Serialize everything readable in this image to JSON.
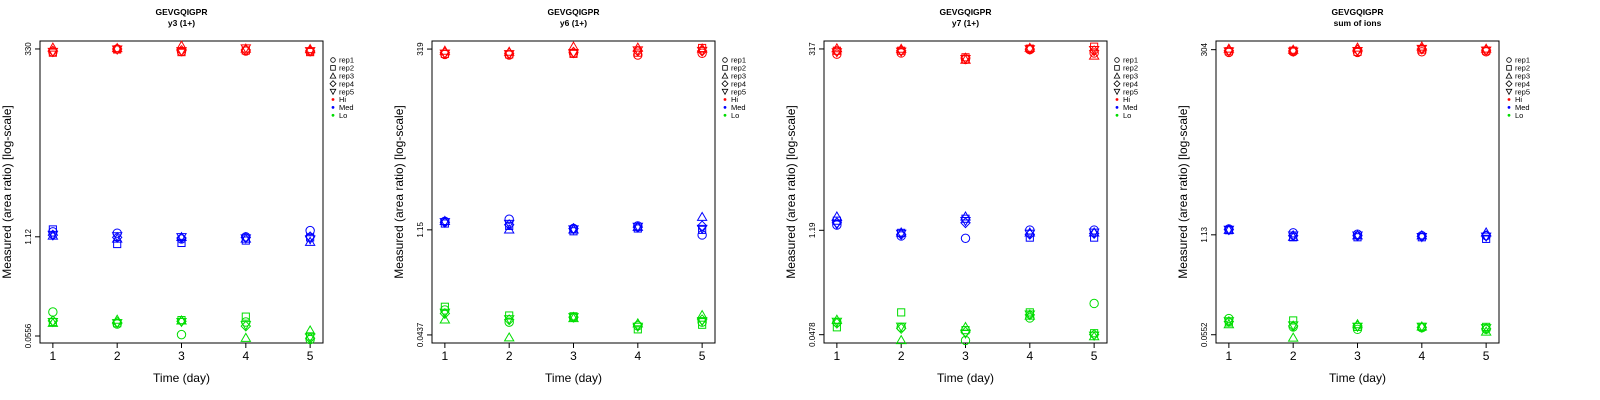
{
  "colors": {
    "Hi": "#ff0000",
    "Med": "#0000ff",
    "Lo": "#00dd00",
    "axis": "#000000"
  },
  "legend": {
    "shapes": [
      {
        "label": "rep1",
        "symbol": "circle"
      },
      {
        "label": "rep2",
        "symbol": "square"
      },
      {
        "label": "rep3",
        "symbol": "triangle"
      },
      {
        "label": "rep4",
        "symbol": "diamond"
      },
      {
        "label": "rep5",
        "symbol": "triangle-down"
      }
    ],
    "levels": [
      {
        "label": "Hi",
        "color": "#ff0000"
      },
      {
        "label": "Med",
        "color": "#0000ff"
      },
      {
        "label": "Lo",
        "color": "#00dd00"
      }
    ]
  },
  "chart_data": [
    {
      "type": "scatter",
      "title": "GEVGQIGPR",
      "subtitle": "y3 (1+)",
      "xlabel": "Time (day)",
      "ylabel": "Measured (area ratio) [log-scale]",
      "x": [
        1,
        2,
        3,
        4,
        5
      ],
      "yscale": "log",
      "yticks": [
        "0.0556",
        "1.12",
        "330"
      ],
      "ylim": [
        0.045,
        420
      ],
      "series": {
        "Hi": {
          "rep1": [
            300,
            330,
            305,
            310,
            305
          ],
          "rep2": [
            295,
            325,
            300,
            315,
            300
          ],
          "rep3": [
            340,
            335,
            360,
            330,
            325
          ],
          "rep4": [
            310,
            330,
            315,
            320,
            310
          ],
          "rep5": [
            305,
            328,
            312,
            340,
            312
          ]
        },
        "Med": {
          "rep1": [
            1.3,
            1.25,
            1.05,
            1.12,
            1.35
          ],
          "rep2": [
            1.4,
            0.9,
            0.93,
            1.0,
            1.1
          ],
          "rep3": [
            1.15,
            1.05,
            1.1,
            1.05,
            0.95
          ],
          "rep4": [
            1.18,
            1.1,
            1.08,
            1.1,
            1.12
          ],
          "rep5": [
            1.2,
            1.15,
            1.12,
            1.08,
            1.05
          ]
        },
        "Lo": {
          "rep1": [
            0.115,
            0.08,
            0.058,
            0.085,
            0.05
          ],
          "rep2": [
            0.085,
            0.082,
            0.09,
            0.1,
            0.055
          ],
          "rep3": [
            0.082,
            0.09,
            0.088,
            0.052,
            0.065
          ],
          "rep4": [
            0.088,
            0.084,
            0.087,
            0.075,
            0.052
          ],
          "rep5": [
            0.086,
            0.083,
            0.086,
            0.078,
            0.054
          ]
        }
      }
    },
    {
      "type": "scatter",
      "title": "GEVGQIGPR",
      "subtitle": "y6 (1+)",
      "xlabel": "Time (day)",
      "ylabel": "Measured (area ratio) [log-scale]",
      "x": [
        1,
        2,
        3,
        4,
        5
      ],
      "yscale": "log",
      "yticks": [
        "0.0437",
        "1.15",
        "319"
      ],
      "ylim": [
        0.034,
        410
      ],
      "series": {
        "Hi": {
          "rep1": [
            270,
            265,
            280,
            265,
            280
          ],
          "rep2": [
            275,
            270,
            275,
            285,
            330
          ],
          "rep3": [
            300,
            290,
            340,
            330,
            320
          ],
          "rep4": [
            285,
            280,
            290,
            300,
            300
          ],
          "rep5": [
            280,
            275,
            285,
            310,
            305
          ]
        },
        "Med": {
          "rep1": [
            1.5,
            1.6,
            1.2,
            1.3,
            0.98
          ],
          "rep2": [
            1.4,
            1.3,
            1.1,
            1.2,
            1.15
          ],
          "rep3": [
            1.5,
            1.15,
            1.15,
            1.25,
            1.7
          ],
          "rep4": [
            1.45,
            1.35,
            1.2,
            1.25,
            1.3
          ],
          "rep5": [
            1.48,
            1.4,
            1.18,
            1.28,
            1.2
          ]
        },
        "Lo": {
          "rep1": [
            0.095,
            0.065,
            0.075,
            0.058,
            0.065
          ],
          "rep2": [
            0.105,
            0.08,
            0.078,
            0.052,
            0.06
          ],
          "rep3": [
            0.07,
            0.04,
            0.073,
            0.062,
            0.08
          ],
          "rep4": [
            0.085,
            0.07,
            0.076,
            0.06,
            0.07
          ],
          "rep5": [
            0.088,
            0.072,
            0.077,
            0.057,
            0.068
          ]
        }
      }
    },
    {
      "type": "scatter",
      "title": "GEVGQIGPR",
      "subtitle": "y7 (1+)",
      "xlabel": "Time (day)",
      "ylabel": "Measured (area ratio) [log-scale]",
      "x": [
        1,
        2,
        3,
        4,
        5
      ],
      "yscale": "log",
      "yticks": [
        "0.0478",
        "1.19",
        "317"
      ],
      "ylim": [
        0.037,
        405
      ],
      "series": {
        "Hi": {
          "rep1": [
            270,
            280,
            230,
            310,
            280
          ],
          "rep2": [
            300,
            300,
            245,
            320,
            340
          ],
          "rep3": [
            320,
            315,
            225,
            325,
            255
          ],
          "rep4": [
            295,
            300,
            240,
            315,
            300
          ],
          "rep5": [
            290,
            295,
            235,
            318,
            310
          ]
        },
        "Med": {
          "rep1": [
            1.4,
            1.0,
            0.93,
            1.2,
            1.2
          ],
          "rep2": [
            1.6,
            1.1,
            1.7,
            0.95,
            0.95
          ],
          "rep3": [
            1.8,
            1.1,
            1.8,
            1.1,
            1.1
          ],
          "rep4": [
            1.5,
            1.05,
            1.5,
            1.05,
            1.08
          ],
          "rep5": [
            1.45,
            1.08,
            1.6,
            1.08,
            1.12
          ]
        },
        "Lo": {
          "rep1": [
            0.07,
            0.06,
            0.04,
            0.08,
            0.125
          ],
          "rep2": [
            0.06,
            0.095,
            0.055,
            0.095,
            0.05
          ],
          "rep3": [
            0.075,
            0.04,
            0.06,
            0.085,
            0.045
          ],
          "rep4": [
            0.068,
            0.058,
            0.052,
            0.088,
            0.048
          ],
          "rep5": [
            0.072,
            0.062,
            0.05,
            0.09,
            0.047
          ]
        }
      }
    },
    {
      "type": "scatter",
      "title": "GEVGQIGPR",
      "subtitle": "sum of ions",
      "xlabel": "Time (day)",
      "ylabel": "Measured (area ratio) [log-scale]",
      "x": [
        1,
        2,
        3,
        4,
        5
      ],
      "yscale": "log",
      "yticks": [
        "0.0552",
        "1.13",
        "304"
      ],
      "ylim": [
        0.043,
        395
      ],
      "series": {
        "Hi": {
          "rep1": [
            280,
            285,
            280,
            285,
            285
          ],
          "rep2": [
            290,
            295,
            285,
            305,
            295
          ],
          "rep3": [
            310,
            300,
            320,
            330,
            310
          ],
          "rep4": [
            295,
            292,
            300,
            310,
            300
          ],
          "rep5": [
            292,
            290,
            295,
            315,
            298
          ]
        },
        "Med": {
          "rep1": [
            1.35,
            1.2,
            1.15,
            1.1,
            1.1
          ],
          "rep2": [
            1.3,
            1.05,
            1.05,
            1.05,
            1.0
          ],
          "rep3": [
            1.3,
            1.05,
            1.1,
            1.1,
            1.2
          ],
          "rep4": [
            1.32,
            1.1,
            1.1,
            1.08,
            1.1
          ],
          "rep5": [
            1.33,
            1.12,
            1.12,
            1.07,
            1.08
          ]
        },
        "Lo": {
          "rep1": [
            0.09,
            0.07,
            0.065,
            0.068,
            0.065
          ],
          "rep2": [
            0.08,
            0.085,
            0.07,
            0.07,
            0.07
          ],
          "rep3": [
            0.075,
            0.05,
            0.075,
            0.07,
            0.06
          ],
          "rep4": [
            0.082,
            0.072,
            0.072,
            0.069,
            0.066
          ],
          "rep5": [
            0.084,
            0.074,
            0.071,
            0.071,
            0.068
          ]
        }
      }
    }
  ]
}
